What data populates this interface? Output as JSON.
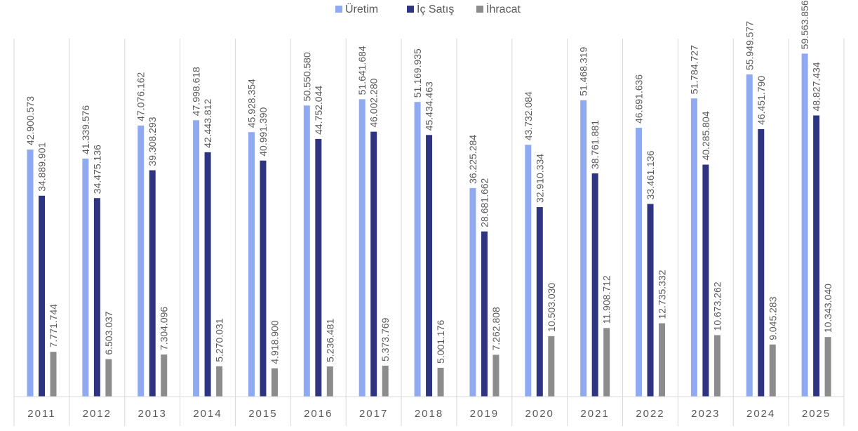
{
  "chart_data": {
    "type": "bar",
    "title": "",
    "xlabel": "",
    "ylabel": "",
    "categories": [
      "2011",
      "2012",
      "2013",
      "2014",
      "2015",
      "2016",
      "2017",
      "2018",
      "2019",
      "2020",
      "2021",
      "2022",
      "2023",
      "2024",
      "2025"
    ],
    "series": [
      {
        "name": "Üretim",
        "color": "#8faaf0",
        "values": [
          42900573,
          41339576,
          47076162,
          47998618,
          45928354,
          50550580,
          51641684,
          51169935,
          36225284,
          43732084,
          51468319,
          46691636,
          51784727,
          55949577,
          59563856
        ],
        "labels": [
          "42.900.573",
          "41.339.576",
          "47.076.162",
          "47.998.618",
          "45.928.354",
          "50.550.580",
          "51.641.684",
          "51.169.935",
          "36.225.284",
          "43.732.084",
          "51.468.319",
          "46.691.636",
          "51.784.727",
          "55.949.577",
          "59.563.856"
        ]
      },
      {
        "name": "İç Satış",
        "color": "#2e3480",
        "values": [
          34889901,
          34475136,
          39308293,
          42443812,
          40991390,
          44752044,
          46002280,
          45434463,
          28681662,
          32910334,
          38761881,
          33461136,
          40285804,
          46451790,
          48827434
        ],
        "labels": [
          "34.889.901",
          "34.475.136",
          "39.308.293",
          "42.443.812",
          "40.991.390",
          "44.752.044",
          "46.002.280",
          "45.434.463",
          "28.681.662",
          "32.910.334",
          "38.761.881",
          "33.461.136",
          "40.285.804",
          "46.451.790",
          "48.827.434"
        ]
      },
      {
        "name": "İhracat",
        "color": "#8c8c8c",
        "values": [
          7771744,
          6503037,
          7304096,
          5270031,
          4918900,
          5236481,
          5373769,
          5001176,
          7262808,
          10503030,
          11908712,
          12735332,
          10673262,
          9045283,
          10343040
        ],
        "labels": [
          "7.771.744",
          "6.503.037",
          "7.304.096",
          "5.270.031",
          "4.918.900",
          "5.236.481",
          "5.373.769",
          "5.001.176",
          "7.262.808",
          "10.503.030",
          "11.908.712",
          "12.735.332",
          "10.673.262",
          "9.045.283",
          "10.343.040"
        ]
      }
    ],
    "ylim": [
      0,
      64000000
    ],
    "grid": false,
    "legend": "top-center"
  }
}
